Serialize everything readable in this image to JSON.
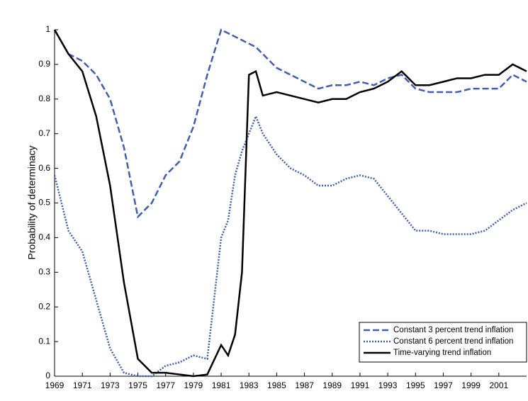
{
  "chart_data": {
    "type": "line",
    "y_label": "Probability of determinacy",
    "x": [
      1969,
      1970,
      1971,
      1972,
      1973,
      1974,
      1975,
      1976,
      1977,
      1978,
      1979,
      1980,
      1981,
      1981.5,
      1982,
      1982.5,
      1983,
      1983.5,
      1984,
      1985,
      1986,
      1987,
      1988,
      1989,
      1990,
      1991,
      1992,
      1993,
      1994,
      1995,
      1996,
      1997,
      1998,
      1999,
      2000,
      2001,
      2002,
      2003
    ],
    "series": [
      {
        "name": "Constant 3 percent trend inflation",
        "color": "#3f5fae",
        "style": "dashed",
        "values": [
          1.0,
          0.93,
          0.91,
          0.87,
          0.8,
          0.66,
          0.46,
          0.5,
          0.58,
          0.62,
          0.72,
          0.87,
          1.0,
          0.99,
          0.98,
          0.97,
          0.96,
          0.95,
          0.93,
          0.89,
          0.87,
          0.85,
          0.83,
          0.84,
          0.84,
          0.85,
          0.84,
          0.86,
          0.87,
          0.83,
          0.82,
          0.82,
          0.82,
          0.83,
          0.83,
          0.83,
          0.87,
          0.85
        ]
      },
      {
        "name": "Constant 6 percent trend inflation",
        "color": "#3f5fae",
        "style": "dotted",
        "values": [
          0.58,
          0.42,
          0.36,
          0.22,
          0.08,
          0.01,
          0.0,
          0.0,
          0.03,
          0.04,
          0.06,
          0.05,
          0.4,
          0.45,
          0.58,
          0.65,
          0.7,
          0.75,
          0.7,
          0.64,
          0.6,
          0.58,
          0.55,
          0.55,
          0.57,
          0.58,
          0.57,
          0.52,
          0.47,
          0.42,
          0.42,
          0.41,
          0.41,
          0.41,
          0.42,
          0.45,
          0.48,
          0.5
        ]
      },
      {
        "name": "Time-varying trend inflation",
        "color": "#000000",
        "style": "solid",
        "values": [
          1.0,
          0.93,
          0.88,
          0.75,
          0.55,
          0.27,
          0.05,
          0.01,
          0.01,
          0.005,
          0,
          0.005,
          0.09,
          0.06,
          0.12,
          0.3,
          0.87,
          0.88,
          0.81,
          0.82,
          0.81,
          0.8,
          0.79,
          0.8,
          0.8,
          0.82,
          0.83,
          0.85,
          0.88,
          0.84,
          0.84,
          0.85,
          0.86,
          0.86,
          0.87,
          0.87,
          0.9,
          0.88
        ]
      }
    ],
    "xlim": [
      1969,
      2003
    ],
    "xticks": [
      1969,
      1971,
      1973,
      1975,
      1977,
      1979,
      1981,
      1983,
      1985,
      1987,
      1989,
      1991,
      1993,
      1995,
      1997,
      1999,
      2001
    ],
    "ylim": [
      0,
      1
    ],
    "yticks": [
      0,
      0.1,
      0.2,
      0.3,
      0.4,
      0.5,
      0.6,
      0.7,
      0.8,
      0.9,
      1
    ],
    "legend": "lower right"
  }
}
